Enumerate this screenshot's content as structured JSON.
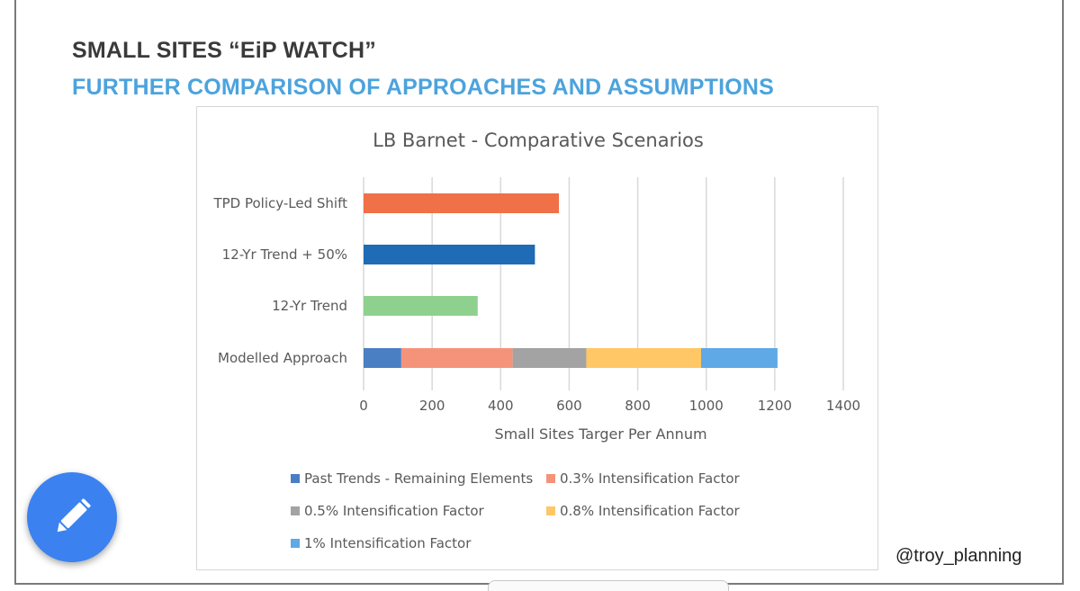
{
  "slide": {
    "title": "SMALL SITES “EiP WATCH”",
    "subtitle": "FURTHER COMPARISON OF APPROACHES AND ASSUMPTIONS",
    "handle": "@troy_planning"
  },
  "fab": {
    "icon": "pencil-icon",
    "color": "#3b82f0"
  },
  "chart_data": {
    "type": "bar",
    "orientation": "horizontal",
    "stacked": true,
    "title": "LB Barnet - Comparative Scenarios",
    "xlabel": "Small Sites Targer Per Annum",
    "ylabel": "",
    "xlim": [
      0,
      1400
    ],
    "xticks": [
      0,
      200,
      400,
      600,
      800,
      1000,
      1200,
      1400
    ],
    "grid": true,
    "legend_position": "bottom",
    "categories": [
      "TPD Policy-Led Shift",
      "12-Yr Trend + 50%",
      "12-Yr Trend",
      "Modelled Approach"
    ],
    "single_bars": [
      {
        "category": "TPD Policy-Led Shift",
        "value": 570,
        "color": "#f07048"
      },
      {
        "category": "12-Yr Trend + 50%",
        "value": 500,
        "color": "#1f6bb5"
      },
      {
        "category": "12-Yr Trend",
        "value": 333,
        "color": "#8ed08e"
      }
    ],
    "series": [
      {
        "name": "Past Trends - Remaining Elements",
        "color": "#4a7fc4",
        "values": [
          0,
          0,
          0,
          110
        ]
      },
      {
        "name": "0.3% Intensification Factor",
        "color": "#f5937a",
        "values": [
          0,
          0,
          0,
          325
        ]
      },
      {
        "name": "0.5% Intensification Factor",
        "color": "#a3a3a3",
        "values": [
          0,
          0,
          0,
          215
        ]
      },
      {
        "name": "0.8% Intensification Factor",
        "color": "#ffc766",
        "values": [
          0,
          0,
          0,
          335
        ]
      },
      {
        "name": "1% Intensification Factor",
        "color": "#5ea9e6",
        "values": [
          0,
          0,
          0,
          223
        ]
      }
    ]
  }
}
